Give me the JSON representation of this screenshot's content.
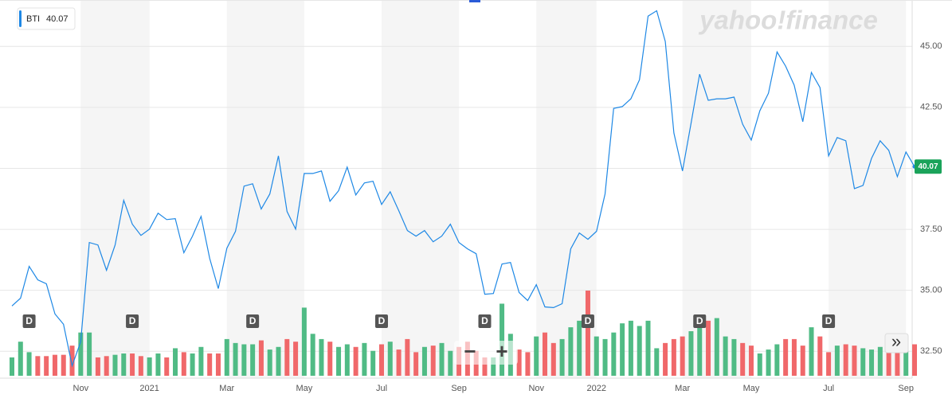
{
  "chart_data": {
    "type": "line",
    "watermark": "yahoo!finance",
    "categories": [
      null,
      null,
      null,
      null,
      null,
      null,
      null,
      null,
      "Nov",
      null,
      null,
      null,
      null,
      null,
      null,
      null,
      "2021",
      null,
      null,
      null,
      null,
      null,
      null,
      null,
      null,
      "Mar",
      null,
      null,
      null,
      null,
      null,
      null,
      null,
      null,
      "May",
      null,
      null,
      null,
      null,
      null,
      null,
      null,
      null,
      "Jul",
      null,
      null,
      null,
      null,
      null,
      null,
      null,
      null,
      "Sep",
      null,
      null,
      null,
      null,
      null,
      null,
      null,
      null,
      "Nov",
      null,
      null,
      null,
      null,
      null,
      null,
      "2022",
      null,
      null,
      null,
      null,
      null,
      null,
      null,
      null,
      null,
      "Mar",
      null,
      null,
      null,
      null,
      null,
      null,
      null,
      "May",
      null,
      null,
      null,
      null,
      null,
      null,
      null,
      null,
      "Jul",
      null,
      null,
      null,
      null,
      null,
      null,
      null,
      null,
      "Sep",
      null
    ],
    "series": [
      {
        "name": "BTI",
        "color": "#1e88e5",
        "values": [
          34.36,
          34.68,
          35.98,
          35.43,
          35.27,
          34.03,
          33.61,
          31.91,
          32.89,
          36.96,
          36.86,
          35.82,
          36.86,
          38.69,
          37.71,
          37.25,
          37.51,
          38.16,
          37.9,
          37.94,
          36.54,
          37.22,
          38.03,
          36.31,
          35.07,
          36.73,
          37.42,
          39.27,
          39.37,
          38.33,
          38.95,
          40.51,
          38.23,
          37.51,
          39.79,
          39.79,
          39.89,
          38.65,
          39.08,
          40.05,
          38.91,
          39.4,
          39.47,
          38.52,
          39.04,
          38.26,
          37.45,
          37.22,
          37.45,
          36.99,
          37.22,
          37.71,
          36.96,
          36.7,
          36.5,
          34.84,
          34.87,
          36.08,
          36.14,
          34.91,
          34.58,
          35.23,
          34.32,
          34.29,
          34.45,
          36.7,
          37.35,
          37.09,
          37.42,
          38.95,
          42.46,
          42.53,
          42.85,
          43.63,
          46.24,
          46.46,
          45.2,
          41.45,
          39.89,
          41.84,
          43.86,
          42.79,
          42.85,
          42.85,
          42.92,
          41.81,
          41.16,
          42.36,
          43.08,
          44.77,
          44.19,
          43.41,
          41.91,
          43.93,
          43.31,
          40.51,
          41.26,
          41.13,
          39.17,
          39.3,
          40.41,
          41.13,
          40.74,
          39.66,
          40.67,
          40.07
        ]
      }
    ],
    "volume": {
      "up_color": "#50bb85",
      "down_color": "#f0686a",
      "values": [
        14,
        26,
        18,
        15,
        15,
        16,
        16,
        23,
        33,
        33,
        14,
        15,
        16,
        17,
        17,
        15,
        14,
        17,
        14,
        21,
        18,
        17,
        22,
        17,
        17,
        28,
        25,
        24,
        24,
        27,
        20,
        22,
        28,
        26,
        52,
        32,
        28,
        26,
        22,
        24,
        22,
        25,
        19,
        24,
        26,
        20,
        28,
        18,
        22,
        23,
        25,
        19,
        22,
        26,
        19,
        14,
        14,
        55,
        32,
        20,
        18,
        30,
        33,
        25,
        28,
        37,
        42,
        65,
        30,
        28,
        33,
        40,
        42,
        38,
        42,
        21,
        25,
        28,
        30,
        34,
        40,
        42,
        44,
        30,
        28,
        25,
        23,
        17,
        20,
        24,
        28,
        28,
        23,
        37,
        30,
        18,
        23,
        24,
        23,
        21,
        20,
        22,
        28,
        20,
        21,
        24
      ]
    },
    "events": [
      null,
      null,
      "D",
      null,
      null,
      null,
      null,
      null,
      null,
      null,
      null,
      null,
      null,
      null,
      "D",
      null,
      null,
      null,
      null,
      null,
      null,
      null,
      null,
      null,
      null,
      null,
      null,
      null,
      "D",
      null,
      null,
      null,
      null,
      null,
      null,
      null,
      null,
      null,
      null,
      null,
      null,
      null,
      null,
      "D",
      null,
      null,
      null,
      null,
      null,
      null,
      null,
      null,
      null,
      null,
      null,
      "D",
      null,
      null,
      null,
      null,
      null,
      null,
      null,
      null,
      null,
      null,
      null,
      "D",
      null,
      null,
      null,
      null,
      null,
      null,
      null,
      null,
      null,
      null,
      null,
      null,
      "D",
      null,
      null,
      null,
      null,
      null,
      null,
      null,
      null,
      null,
      null,
      null,
      null,
      null,
      null,
      "D",
      null,
      null,
      null,
      null,
      null,
      null,
      null,
      null,
      null,
      null
    ],
    "ylim": [
      31.4,
      46.9
    ],
    "yticks": [
      {
        "value": 32.5,
        "label": "32.50"
      },
      {
        "value": 35,
        "label": "35.00"
      },
      {
        "value": 37.5,
        "label": "37.50"
      },
      {
        "value": 40,
        "label": "40.00"
      },
      {
        "value": 42.5,
        "label": "42.50"
      },
      {
        "value": 45,
        "label": "45.00"
      }
    ],
    "grid": true,
    "controls": {
      "zoom_out": "−",
      "zoom_in": "+",
      "scroll": "»"
    }
  }
}
